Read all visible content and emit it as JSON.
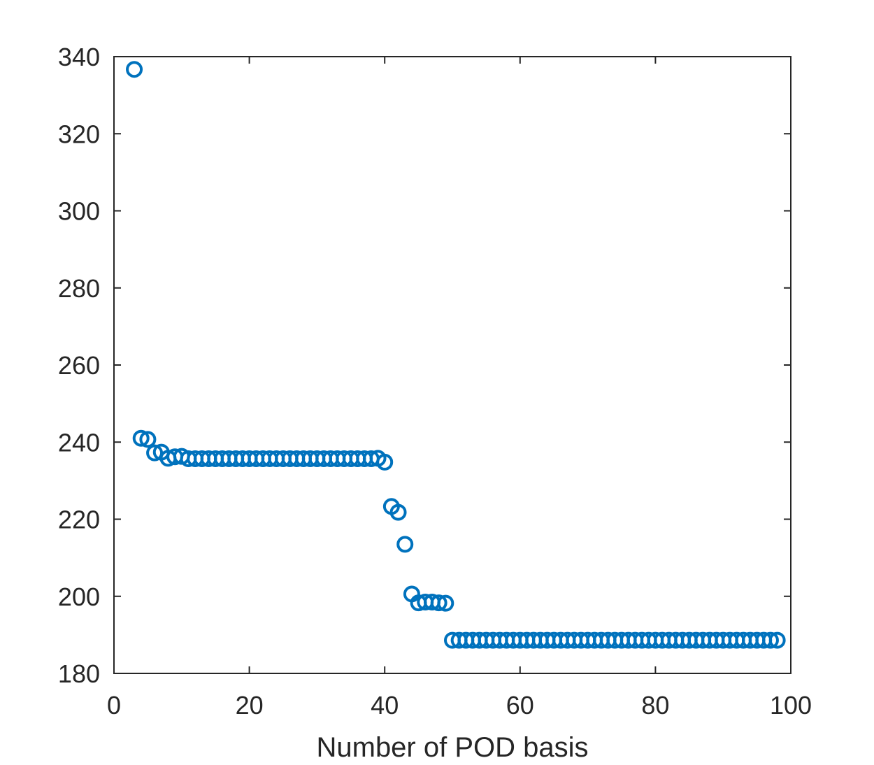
{
  "chart_data": {
    "type": "scatter",
    "title": "",
    "xlabel": "Number of POD basis",
    "ylabel": "",
    "xlim": [
      0,
      100
    ],
    "ylim": [
      180,
      340
    ],
    "xticks": [
      0,
      20,
      40,
      60,
      80,
      100
    ],
    "yticks": [
      180,
      200,
      220,
      240,
      260,
      280,
      300,
      320,
      340
    ],
    "grid": false,
    "box": true,
    "marker": "circle-open",
    "color": "#0072BD",
    "series": [
      {
        "x": [
          3,
          4,
          5,
          6,
          7,
          8,
          9,
          10,
          11,
          12,
          13,
          14,
          15,
          16,
          17,
          18,
          19,
          20,
          21,
          22,
          23,
          24,
          25,
          26,
          27,
          28,
          29,
          30,
          31,
          32,
          33,
          34,
          35,
          36,
          37,
          38,
          39,
          40,
          41,
          42,
          43,
          44,
          45,
          46,
          47,
          48,
          49,
          50,
          51,
          52,
          53,
          54,
          55,
          56,
          57,
          58,
          59,
          60,
          61,
          62,
          63,
          64,
          65,
          66,
          67,
          68,
          69,
          70,
          71,
          72,
          73,
          74,
          75,
          76,
          77,
          78,
          79,
          80,
          81,
          82,
          83,
          84,
          85,
          86,
          87,
          88,
          89,
          90,
          91,
          92,
          93,
          94,
          95,
          96,
          97,
          98
        ],
        "y": [
          336.7,
          241,
          240.7,
          237.2,
          237.4,
          235.8,
          236.2,
          236.3,
          235.7,
          235.7,
          235.7,
          235.7,
          235.7,
          235.7,
          235.7,
          235.7,
          235.7,
          235.7,
          235.7,
          235.7,
          235.7,
          235.7,
          235.7,
          235.7,
          235.7,
          235.7,
          235.7,
          235.7,
          235.7,
          235.7,
          235.7,
          235.7,
          235.7,
          235.7,
          235.7,
          235.7,
          235.8,
          234.8,
          223.3,
          221.8,
          213.5,
          200.6,
          198.3,
          198.5,
          198.5,
          198.3,
          198.2,
          188.6,
          188.6,
          188.6,
          188.6,
          188.6,
          188.6,
          188.6,
          188.6,
          188.6,
          188.6,
          188.6,
          188.6,
          188.6,
          188.6,
          188.6,
          188.6,
          188.6,
          188.6,
          188.6,
          188.6,
          188.6,
          188.6,
          188.6,
          188.6,
          188.6,
          188.6,
          188.6,
          188.6,
          188.6,
          188.6,
          188.6,
          188.6,
          188.6,
          188.6,
          188.6,
          188.6,
          188.6,
          188.6,
          188.6,
          188.6,
          188.6,
          188.6,
          188.6,
          188.6,
          188.6,
          188.6,
          188.6,
          188.6,
          188.6
        ]
      }
    ]
  }
}
